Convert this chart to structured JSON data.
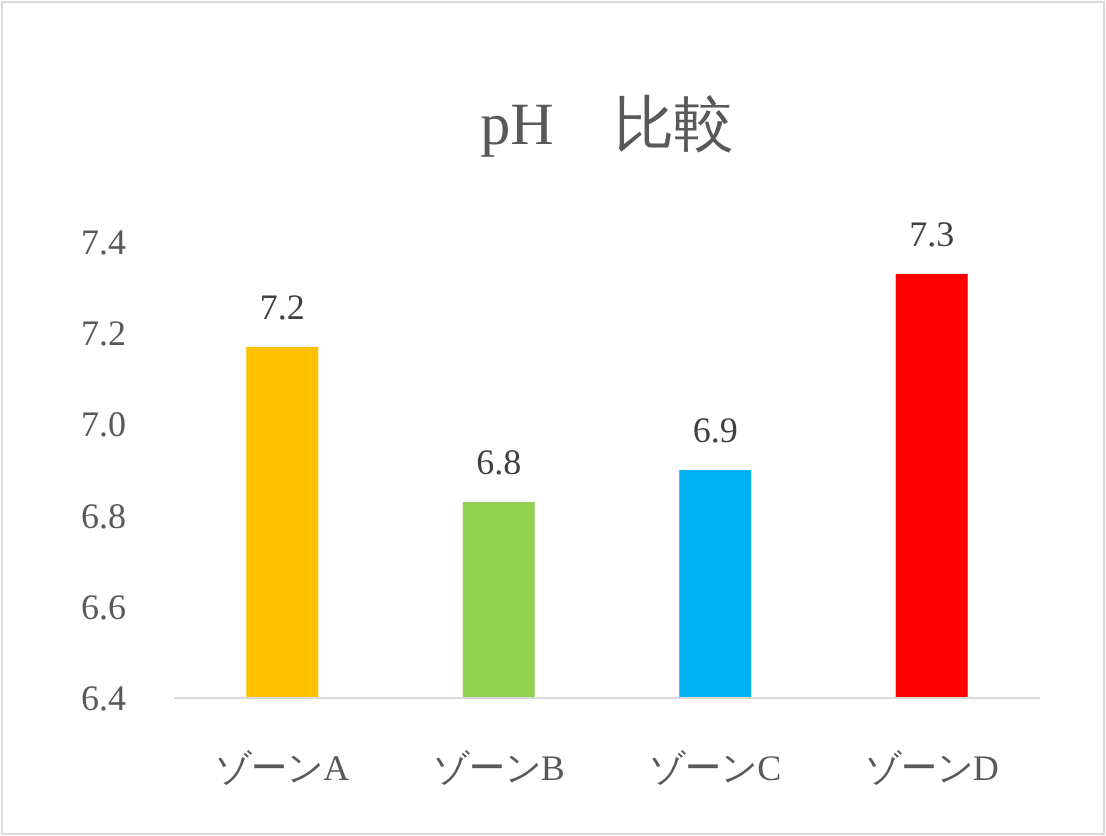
{
  "chart_data": {
    "type": "bar",
    "title": "pH　比較",
    "categories": [
      "ゾーンA",
      "ゾーンB",
      "ゾーンC",
      "ゾーンD"
    ],
    "values": [
      7.17,
      6.83,
      6.9,
      7.33
    ],
    "value_labels": [
      "7.2",
      "6.8",
      "6.9",
      "7.3"
    ],
    "colors": [
      "#ffc000",
      "#92d050",
      "#00b0f0",
      "#ff0000"
    ],
    "ylim": [
      6.4,
      7.4
    ],
    "yticks": [
      6.4,
      6.6,
      6.8,
      {
        "value": 7,
        "label": "7.0"
      },
      7.2,
      7.4
    ]
  }
}
